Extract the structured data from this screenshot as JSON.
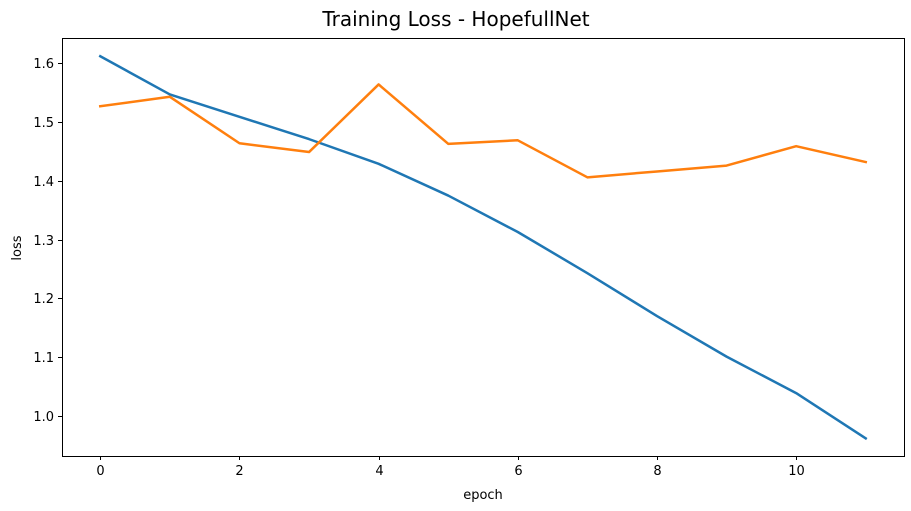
{
  "chart_data": {
    "type": "line",
    "title": "Training Loss - HopefullNet",
    "xlabel": "epoch",
    "ylabel": "loss",
    "x": [
      0,
      1,
      2,
      3,
      4,
      5,
      6,
      7,
      8,
      9,
      10,
      11
    ],
    "xlim": [
      -0.55,
      11.55
    ],
    "ylim": [
      0.932,
      1.643
    ],
    "xticks": [
      0,
      2,
      4,
      6,
      8,
      10
    ],
    "xtick_labels": [
      "0",
      "2",
      "4",
      "6",
      "8",
      "10"
    ],
    "yticks": [
      1.0,
      1.1,
      1.2,
      1.3,
      1.4,
      1.5,
      1.6
    ],
    "ytick_labels": [
      "1.0",
      "1.1",
      "1.2",
      "1.3",
      "1.4",
      "1.5",
      "1.6"
    ],
    "grid": false,
    "legend": false,
    "series": [
      {
        "color": "#1f77b4",
        "values": [
          1.612,
          1.547,
          1.509,
          1.471,
          1.429,
          1.375,
          1.313,
          1.243,
          1.17,
          1.101,
          1.039,
          0.962
        ]
      },
      {
        "color": "#ff7f0e",
        "values": [
          1.527,
          1.543,
          1.464,
          1.449,
          1.564,
          1.463,
          1.469,
          1.406,
          1.416,
          1.426,
          1.459,
          1.432
        ]
      }
    ]
  }
}
